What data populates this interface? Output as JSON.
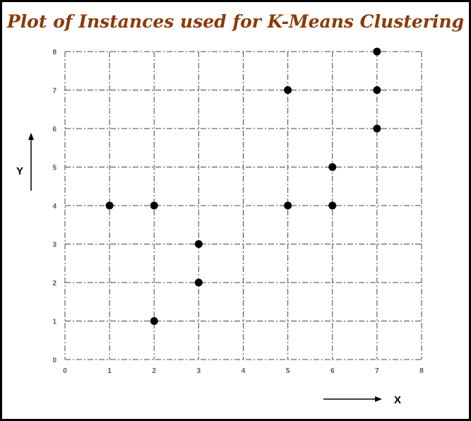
{
  "colors": {
    "title": "#8B3A0A",
    "points": "#000000",
    "grid": "#444444",
    "tick_labels": "#595959"
  },
  "chart_data": {
    "type": "scatter",
    "title": "Plot of Instances used for K-Means Clustering",
    "xlabel": "X",
    "ylabel": "Y",
    "xlim": [
      0,
      8
    ],
    "ylim": [
      0,
      8
    ],
    "xticks": [
      0,
      1,
      2,
      3,
      4,
      5,
      6,
      7,
      8
    ],
    "yticks": [
      0,
      1,
      2,
      3,
      4,
      5,
      6,
      7,
      8
    ],
    "grid": true,
    "grid_style": "dash-dot",
    "points": [
      {
        "x": 1,
        "y": 4
      },
      {
        "x": 2,
        "y": 4
      },
      {
        "x": 2,
        "y": 1
      },
      {
        "x": 3,
        "y": 3
      },
      {
        "x": 3,
        "y": 2
      },
      {
        "x": 5,
        "y": 7
      },
      {
        "x": 5,
        "y": 4
      },
      {
        "x": 6,
        "y": 5
      },
      {
        "x": 6,
        "y": 4
      },
      {
        "x": 7,
        "y": 8
      },
      {
        "x": 7,
        "y": 7
      },
      {
        "x": 7,
        "y": 6
      }
    ]
  }
}
